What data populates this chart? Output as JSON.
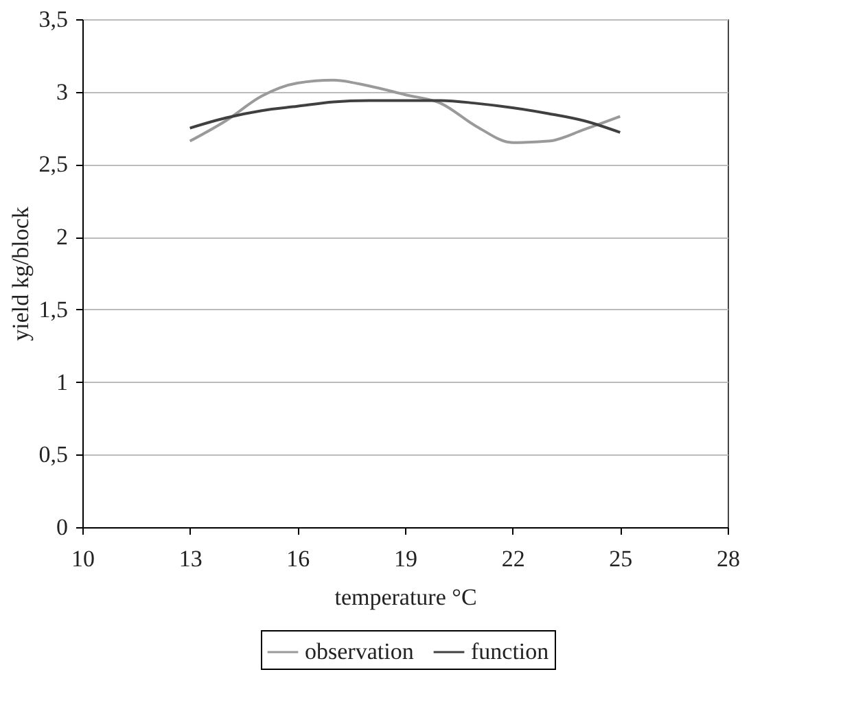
{
  "chart_data": {
    "type": "line",
    "xlabel": "temperature °C",
    "ylabel": "yield kg/block",
    "xlim": [
      10,
      28
    ],
    "xticks": [
      10,
      13,
      16,
      19,
      22,
      25,
      28
    ],
    "ylim": [
      0,
      3.5
    ],
    "yticks": [
      0,
      {
        "value": 0.5,
        "label": "0,5"
      },
      1,
      {
        "value": 1.5,
        "label": "1,5"
      },
      2,
      {
        "value": 2.5,
        "label": "2,5"
      },
      3,
      {
        "value": 3.5,
        "label": "3,5"
      }
    ],
    "grid": "y",
    "legend": "bottom",
    "marker": "none",
    "line_style": "solid",
    "x": [
      13,
      14,
      15,
      16,
      17,
      18,
      19,
      20,
      21,
      22,
      23,
      24,
      25
    ],
    "series": [
      {
        "name": "observation",
        "color": "#9a9a9a",
        "values": [
          2.66,
          2.8,
          2.97,
          3.06,
          3.08,
          3.04,
          2.98,
          2.92,
          2.76,
          2.65,
          2.66,
          2.74,
          2.83
        ]
      },
      {
        "name": "function",
        "color": "#404040",
        "values": [
          2.75,
          2.82,
          2.87,
          2.9,
          2.93,
          2.94,
          2.94,
          2.94,
          2.92,
          2.89,
          2.85,
          2.8,
          2.72
        ]
      }
    ]
  }
}
